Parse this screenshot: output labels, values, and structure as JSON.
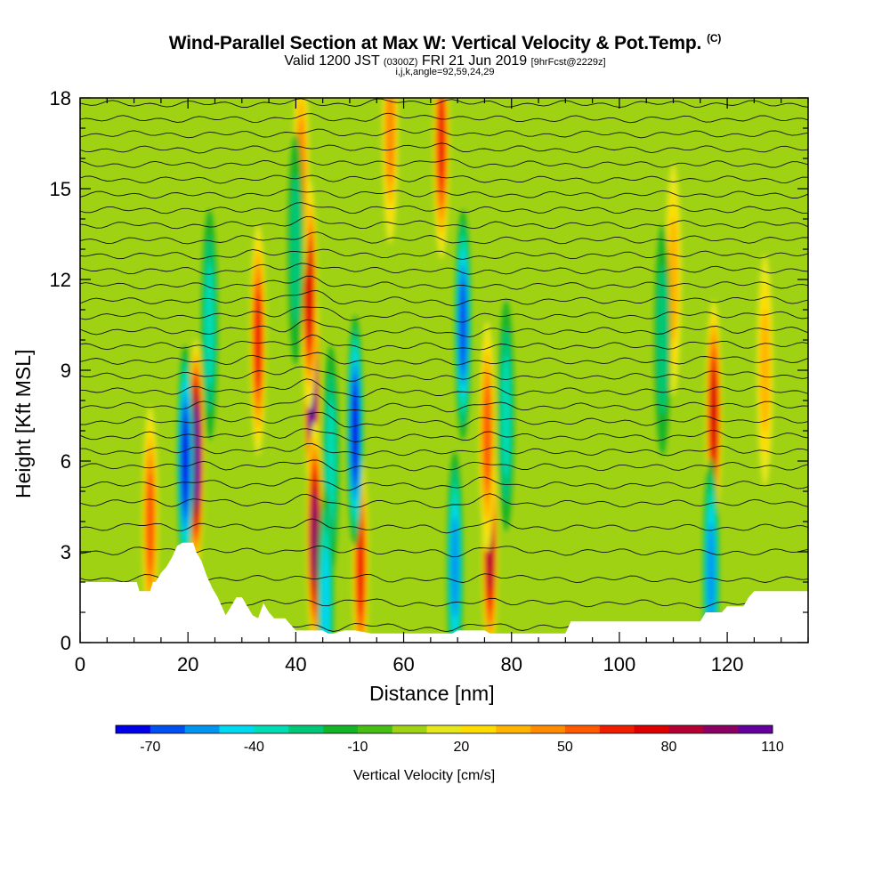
{
  "header": {
    "title": "Wind-Parallel Section at Max W: Vertical Velocity & Pot.Temp.",
    "copyright": "(C)",
    "valid_prefix": "Valid 1200 JST",
    "valid_utc": "(0300Z)",
    "valid_date": "FRI 21 Jun 2019",
    "forecast": "[9hrFcst@2229z]",
    "indices": "i,j,k,angle=92,59,24,29"
  },
  "chart_data": {
    "type": "heatmap",
    "xlabel": "Distance [nm]",
    "ylabel": "Height [Kft MSL]",
    "xlim": [
      0,
      135
    ],
    "ylim": [
      0,
      18
    ],
    "xticks": [
      0,
      20,
      40,
      60,
      80,
      100,
      120
    ],
    "yticks": [
      0,
      3,
      6,
      9,
      12,
      15,
      18
    ],
    "colorbar": {
      "label": "Vertical Velocity [cm/s]",
      "min": -80,
      "step": 10,
      "tick_values": [
        -70,
        -40,
        -10,
        20,
        50,
        80,
        110
      ],
      "colors": [
        "#0000e8",
        "#0050f0",
        "#0096f0",
        "#00d8f0",
        "#00dcb4",
        "#00c878",
        "#14b428",
        "#46be14",
        "#a0d214",
        "#e6e61e",
        "#ffdc00",
        "#ffb400",
        "#ff8c00",
        "#ff5a00",
        "#f01e00",
        "#dc0000",
        "#b40032",
        "#8c0064",
        "#64009b"
      ]
    },
    "terrain_kft": [
      [
        0,
        2.0
      ],
      [
        10.5,
        2.0
      ],
      [
        11,
        1.7
      ],
      [
        13,
        1.7
      ],
      [
        13.5,
        2.0
      ],
      [
        14,
        2.0
      ],
      [
        15,
        2.3
      ],
      [
        16,
        2.5
      ],
      [
        17,
        2.8
      ],
      [
        18,
        3.2
      ],
      [
        19,
        3.3
      ],
      [
        21,
        3.3
      ],
      [
        21.5,
        3.0
      ],
      [
        22.5,
        2.7
      ],
      [
        23.5,
        2.2
      ],
      [
        24.5,
        1.8
      ],
      [
        25.5,
        1.5
      ],
      [
        26.5,
        1.1
      ],
      [
        27,
        0.9
      ],
      [
        28,
        1.2
      ],
      [
        29,
        1.5
      ],
      [
        30,
        1.5
      ],
      [
        31,
        1.2
      ],
      [
        32,
        0.9
      ],
      [
        33,
        0.8
      ],
      [
        34,
        1.3
      ],
      [
        35,
        1.0
      ],
      [
        36,
        0.8
      ],
      [
        38,
        0.8
      ],
      [
        39,
        0.6
      ],
      [
        40,
        0.4
      ],
      [
        43,
        0.4
      ],
      [
        45,
        0.4
      ],
      [
        46,
        0.3
      ],
      [
        47,
        0.3
      ],
      [
        49,
        0.4
      ],
      [
        51,
        0.4
      ],
      [
        54,
        0.3
      ],
      [
        60,
        0.3
      ],
      [
        69,
        0.3
      ],
      [
        70,
        0.4
      ],
      [
        75,
        0.4
      ],
      [
        76,
        0.3
      ],
      [
        90,
        0.3
      ],
      [
        91,
        0.7
      ],
      [
        100,
        0.7
      ],
      [
        115,
        0.7
      ],
      [
        116,
        1.0
      ],
      [
        119,
        1.0
      ],
      [
        120,
        1.2
      ],
      [
        122,
        1.2
      ],
      [
        123,
        1.2
      ],
      [
        124,
        1.5
      ],
      [
        125,
        1.7
      ],
      [
        135,
        1.7
      ]
    ],
    "updrafts": [
      {
        "x": 21.5,
        "z": 6.2,
        "w": 115
      },
      {
        "x": 43.0,
        "z": 8.5,
        "w": 120
      },
      {
        "x": 43.5,
        "z": 3.5,
        "w": 90
      },
      {
        "x": 42.5,
        "z": 11.5,
        "w": 70
      },
      {
        "x": 33.0,
        "z": 10.0,
        "w": 60
      },
      {
        "x": 76.0,
        "z": 3.2,
        "w": 85
      },
      {
        "x": 75.5,
        "z": 6.8,
        "w": 55
      },
      {
        "x": 67.0,
        "z": 16.5,
        "w": 60
      },
      {
        "x": 117.5,
        "z": 7.5,
        "w": 70
      },
      {
        "x": 52.0,
        "z": 2.5,
        "w": 60
      },
      {
        "x": 13.0,
        "z": 4.0,
        "w": 50
      },
      {
        "x": 57.5,
        "z": 17.0,
        "w": 45
      },
      {
        "x": 41.0,
        "z": 15.5,
        "w": 45
      },
      {
        "x": 110.0,
        "z": 12.0,
        "w": 30
      },
      {
        "x": 127.0,
        "z": 9.0,
        "w": 30
      }
    ],
    "downdrafts": [
      {
        "x": 19.5,
        "z": 6.0,
        "w": -70
      },
      {
        "x": 51.0,
        "z": 7.0,
        "w": -70
      },
      {
        "x": 71.0,
        "z": 10.5,
        "w": -65
      },
      {
        "x": 69.5,
        "z": 2.5,
        "w": -50
      },
      {
        "x": 117.0,
        "z": 2.3,
        "w": -50
      },
      {
        "x": 24.0,
        "z": 10.5,
        "w": -35
      },
      {
        "x": 79.0,
        "z": 7.5,
        "w": -30
      },
      {
        "x": 46.5,
        "z": 6.0,
        "w": -35
      },
      {
        "x": 40.0,
        "z": 13.0,
        "w": -25
      },
      {
        "x": 108.0,
        "z": 10.0,
        "w": -20
      },
      {
        "x": 45.5,
        "z": 1.3,
        "w": -40
      }
    ],
    "theta_contour_heights_kft": [
      0.5,
      1.3,
      2.1,
      3.0,
      3.8,
      4.6,
      5.2,
      5.8,
      6.3,
      6.8,
      7.3,
      7.8,
      8.3,
      8.8,
      9.3,
      9.8,
      10.3,
      10.8,
      11.3,
      11.8,
      12.3,
      12.8,
      13.3,
      13.8,
      14.3,
      14.8,
      15.3,
      15.8,
      16.3,
      16.8,
      17.3,
      17.8
    ]
  }
}
